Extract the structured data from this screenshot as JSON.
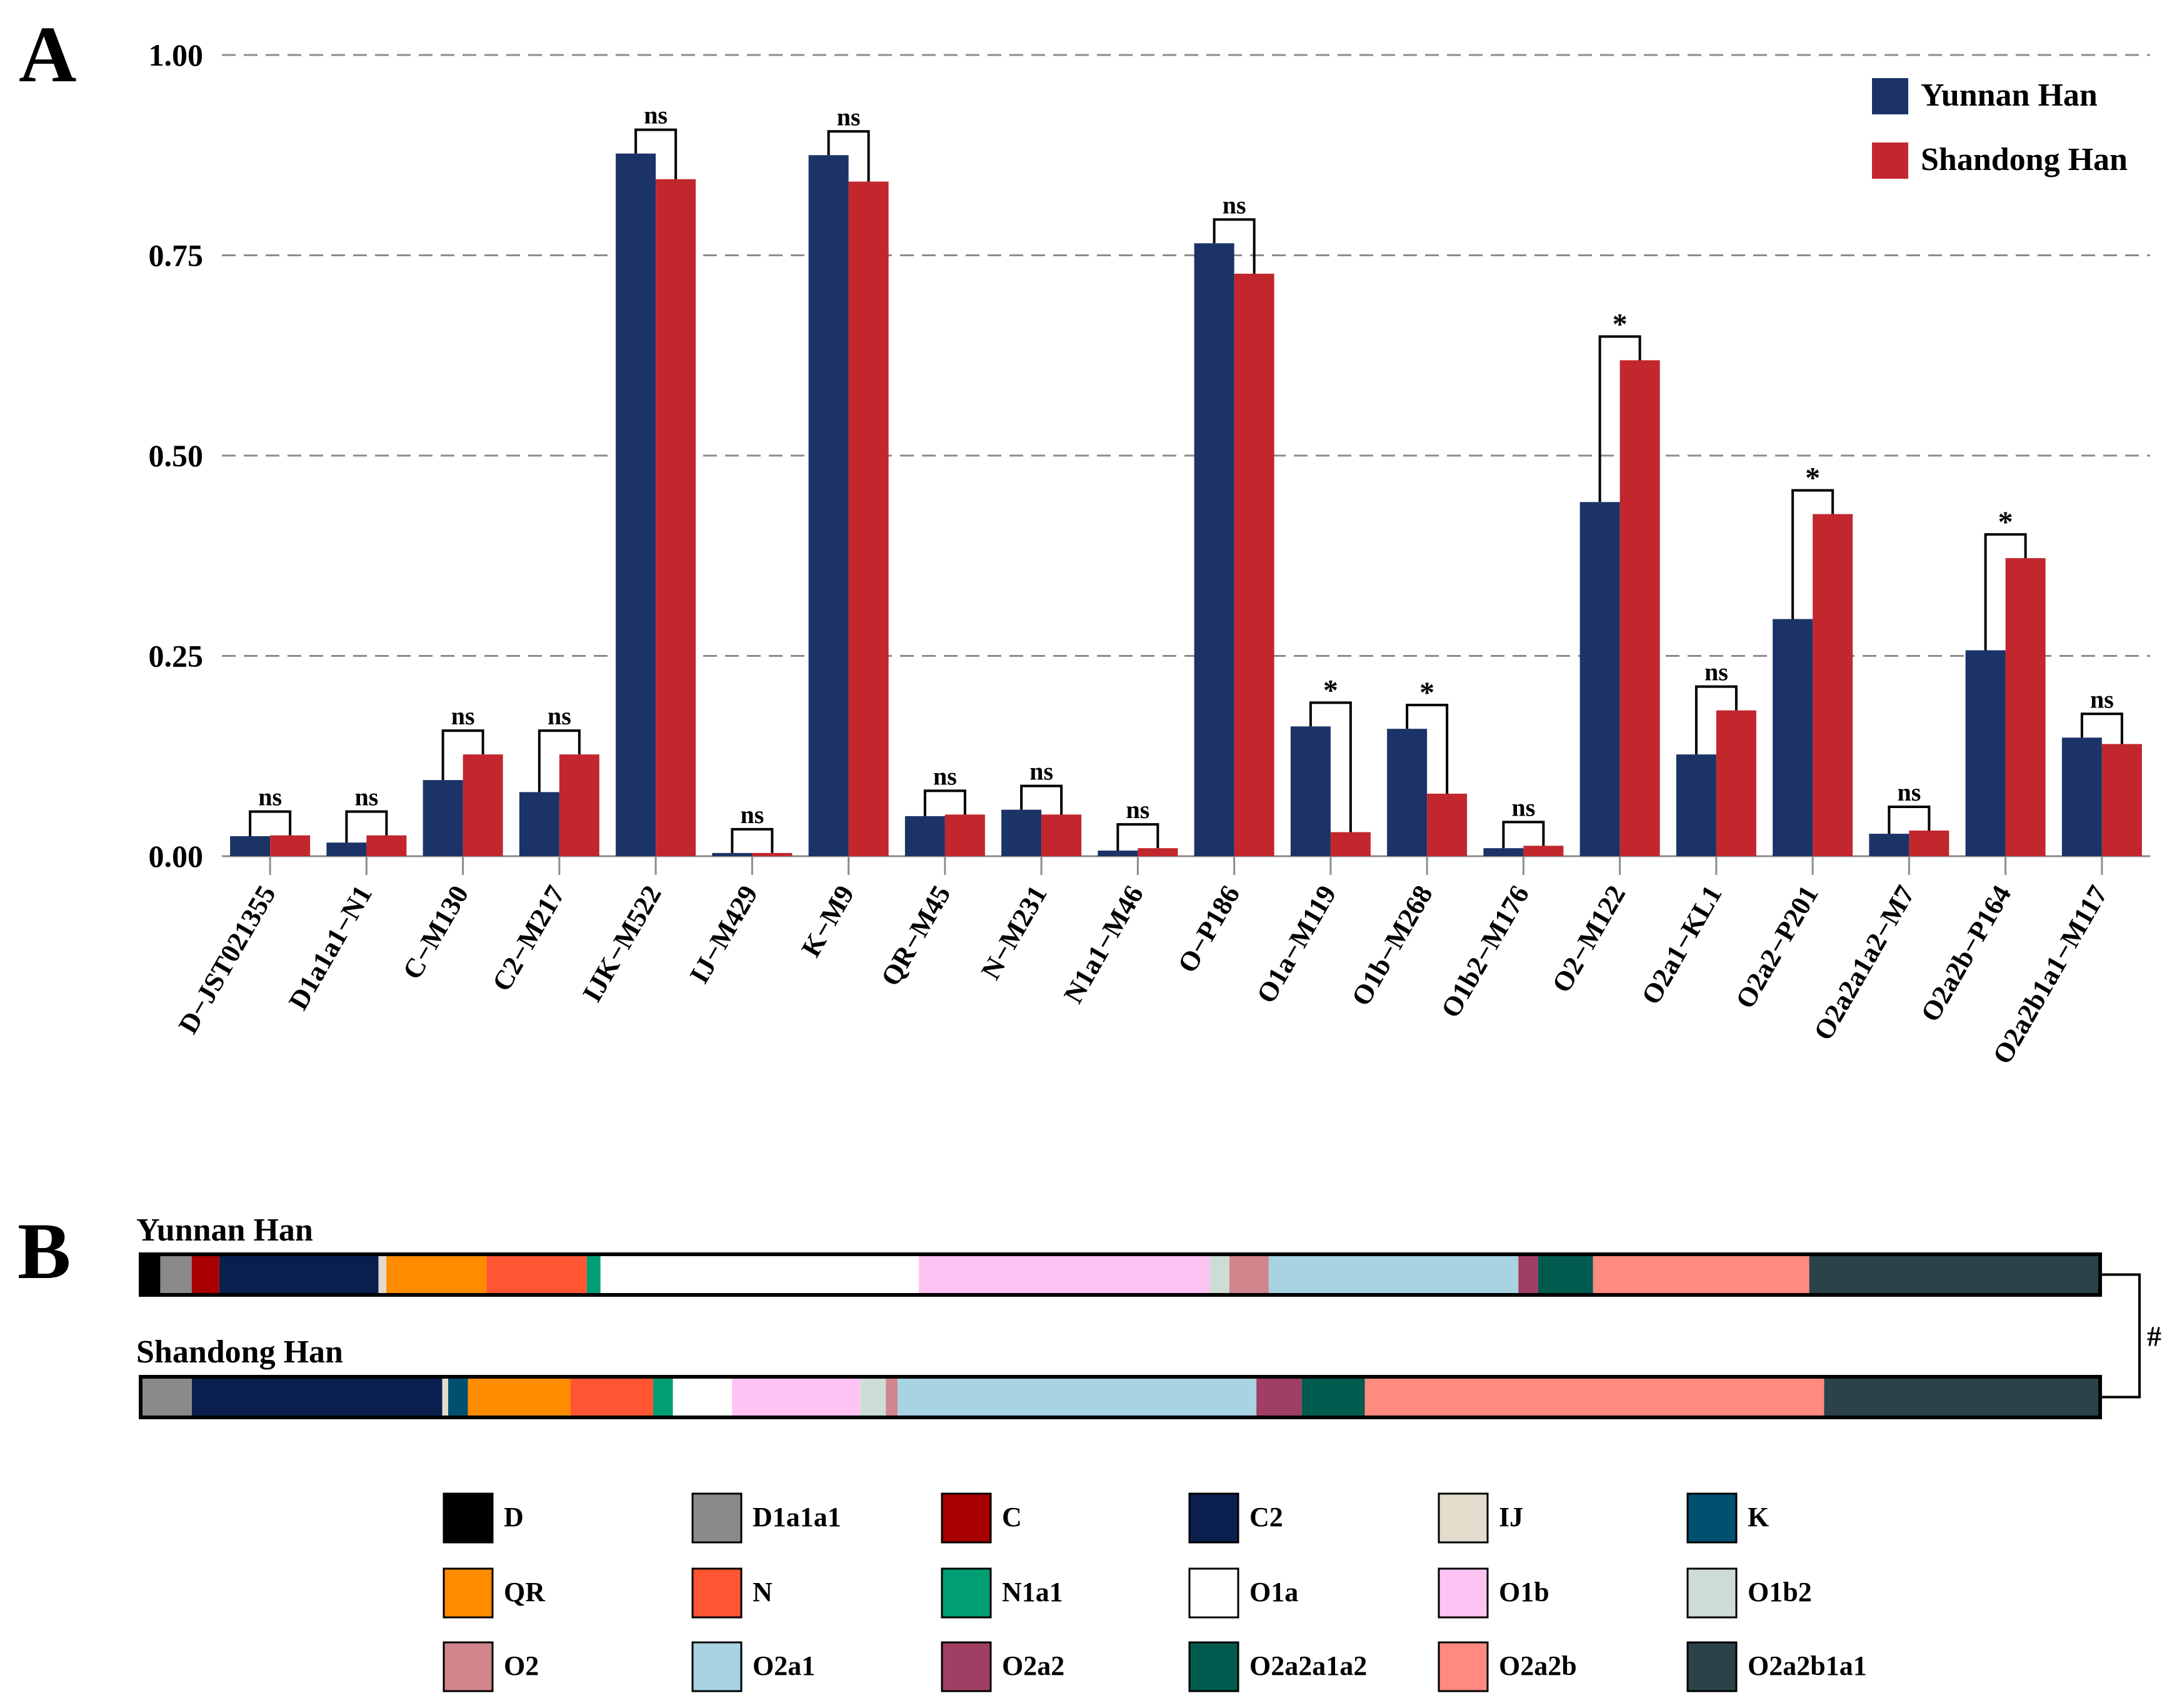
{
  "panel_a_letter": "A",
  "panel_b_letter": "B",
  "chart_data": [
    {
      "type": "bar",
      "title": "",
      "xlabel": "",
      "ylabel": "",
      "ylim": [
        0,
        1
      ],
      "grid": "horizontal dashed",
      "legend_position": "top-right",
      "yticks": [
        "0.00",
        "0.25",
        "0.50",
        "0.75",
        "1.00"
      ],
      "ytick_values": [
        0,
        0.25,
        0.5,
        0.75,
        1.0
      ],
      "categories": [
        "D−JST021355",
        "D1a1a1−N1",
        "C−M130",
        "C2−M217",
        "IJK−M522",
        "IJ−M429",
        "K−M9",
        "QR−M45",
        "N−M231",
        "N1a1−M46",
        "O−P186",
        "O1a−M119",
        "O1b−M268",
        "O1b2−M176",
        "O2−M122",
        "O2a1−KL1",
        "O2a2−P201",
        "O2a2a1a2−M7",
        "O2a2b−P164",
        "O2a2b1a1−M117"
      ],
      "series": [
        {
          "name": "Yunnan Han",
          "color": "#1b3366",
          "values": [
            0.025,
            0.017,
            0.095,
            0.08,
            0.877,
            0.004,
            0.875,
            0.05,
            0.058,
            0.007,
            0.765,
            0.162,
            0.159,
            0.01,
            0.442,
            0.127,
            0.296,
            0.028,
            0.257,
            0.148
          ]
        },
        {
          "name": "Shandong Han",
          "color": "#c1272d",
          "values": [
            0.026,
            0.026,
            0.127,
            0.127,
            0.845,
            0.004,
            0.842,
            0.052,
            0.052,
            0.01,
            0.727,
            0.03,
            0.078,
            0.013,
            0.619,
            0.182,
            0.427,
            0.032,
            0.372,
            0.14
          ]
        }
      ],
      "significance": [
        "ns",
        "ns",
        "ns",
        "ns",
        "ns",
        "ns",
        "ns",
        "ns",
        "ns",
        "ns",
        "ns",
        "*",
        "*",
        "ns",
        "*",
        "ns",
        "*",
        "ns",
        "*",
        "ns"
      ]
    },
    {
      "type": "bar",
      "orientation": "horizontal-stacked",
      "title": "",
      "xlim": [
        0,
        1
      ],
      "significance_between_rows": "#",
      "segments": [
        "D",
        "D1a1a1",
        "C",
        "C2",
        "IJ",
        "K",
        "QR",
        "N",
        "N1a1",
        "O1a",
        "O1b",
        "O1b2",
        "O2",
        "O2a1",
        "O2a2",
        "O2a2a1a2",
        "O2a2b",
        "O2a2b1a1"
      ],
      "colors": {
        "D": "#000000",
        "D1a1a1": "#8a8a8a",
        "C": "#a80000",
        "C2": "#0a1f4d",
        "IJ": "#e2dccd",
        "K": "#005070",
        "QR": "#ff8c00",
        "N": "#ff5533",
        "N1a1": "#009e73",
        "O1a": "#ffffff",
        "O1b": "#ffc3f3",
        "O1b2": "#cdddd6",
        "O2": "#d1858c",
        "O2a1": "#a8d3e2",
        "O2a2": "#a03e63",
        "O2a2a1a2": "#005a4e",
        "O2a2b": "#ff8a80",
        "O2a2b1a1": "#2c4249"
      },
      "series": [
        {
          "name": "Yunnan Han",
          "values": [
            0.01,
            0.016,
            0.014,
            0.081,
            0.004,
            0.0,
            0.051,
            0.051,
            0.007,
            0.162,
            0.148,
            0.01,
            0.02,
            0.127,
            0.01,
            0.028,
            0.11,
            0.148
          ]
        },
        {
          "name": "Shandong Han",
          "values": [
            0.0,
            0.026,
            0.0,
            0.127,
            0.003,
            0.01,
            0.052,
            0.042,
            0.01,
            0.03,
            0.065,
            0.013,
            0.006,
            0.182,
            0.023,
            0.032,
            0.233,
            0.14
          ]
        }
      ]
    }
  ],
  "legend_b": [
    "D",
    "D1a1a1",
    "C",
    "C2",
    "IJ",
    "K",
    "QR",
    "N",
    "N1a1",
    "O1a",
    "O1b",
    "O1b2",
    "O2",
    "O2a1",
    "O2a2",
    "O2a2a1a2",
    "O2a2b",
    "O2a2b1a1"
  ]
}
